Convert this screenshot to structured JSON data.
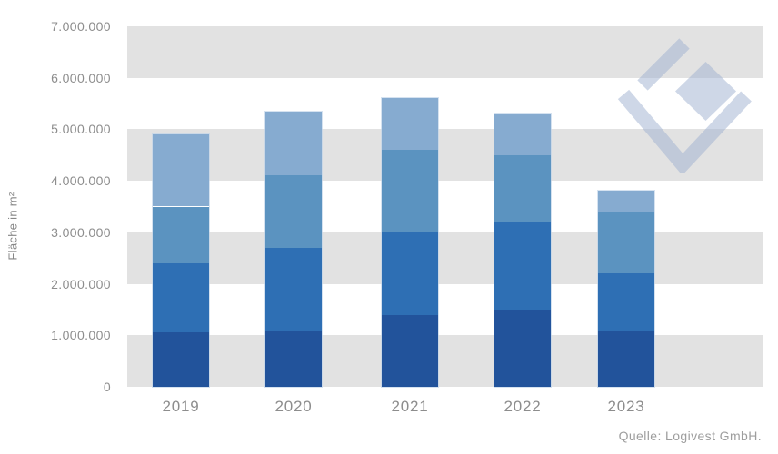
{
  "chart_data": {
    "type": "bar",
    "stacked": true,
    "title": "",
    "categories": [
      "2019",
      "2020",
      "2021",
      "2022",
      "2023"
    ],
    "series": [
      {
        "name": "segment-1-bottom-dark-blue",
        "color": "#22539b",
        "values": [
          1050000,
          1100000,
          1400000,
          1500000,
          1100000
        ]
      },
      {
        "name": "segment-2-medium-blue",
        "color": "#2e6fb4",
        "values": [
          1350000,
          1600000,
          1600000,
          1700000,
          1100000
        ]
      },
      {
        "name": "segment-3-steel-blue",
        "color": "#5b93c0",
        "values": [
          1100000,
          1400000,
          1600000,
          1300000,
          1200000
        ]
      },
      {
        "name": "segment-4-top-light-blue",
        "color": "#86abd0",
        "values": [
          1400000,
          1250000,
          1000000,
          800000,
          400000
        ]
      }
    ],
    "xlabel": "",
    "ylabel": "Fläche in m²",
    "ylim": [
      0,
      7000000
    ],
    "y_ticks": [
      "7.000.000",
      "6.000.000",
      "5.000.000",
      "4.000.000",
      "3.000.000",
      "2.000.000",
      "1.000.000",
      "0"
    ],
    "grid": "alternating-horizontal-bands",
    "band_color": "#e2e2e2",
    "legend": "none",
    "source": "Quelle: Logivest GmbH.",
    "watermark_color": "rgba(158,176,208,0.5)"
  }
}
